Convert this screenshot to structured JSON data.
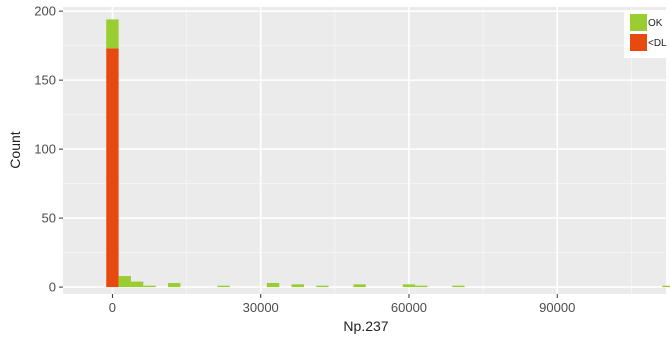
{
  "chart_data": {
    "type": "bar",
    "subtype": "stacked-histogram",
    "title": "",
    "xlabel": "Np.237",
    "ylabel": "Count",
    "xlim": [
      -10000,
      112000
    ],
    "ylim": [
      -5,
      203
    ],
    "x_ticks": [
      0,
      30000,
      60000,
      90000
    ],
    "x_tick_labels": [
      "0",
      "30000",
      "60000",
      "90000"
    ],
    "y_ticks": [
      0,
      50,
      100,
      150,
      200
    ],
    "y_tick_labels": [
      "0",
      "50",
      "100",
      "150",
      "200"
    ],
    "bin_width": 2500,
    "grid": true,
    "legend_position": "top-right",
    "colors": {
      "OK": "#9acd32",
      "<DL": "#e8490f",
      "panel": "#ebebeb",
      "grid": "#ffffff"
    },
    "series": [
      {
        "name": "OK",
        "bins": [
          {
            "x0": -1250,
            "x1": 1250,
            "value": 21
          },
          {
            "x0": 1250,
            "x1": 3750,
            "value": 8
          },
          {
            "x0": 3750,
            "x1": 6250,
            "value": 4
          },
          {
            "x0": 6250,
            "x1": 8750,
            "value": 1
          },
          {
            "x0": 11250,
            "x1": 13750,
            "value": 3
          },
          {
            "x0": 21250,
            "x1": 23750,
            "value": 1
          },
          {
            "x0": 31250,
            "x1": 33750,
            "value": 3
          },
          {
            "x0": 36250,
            "x1": 38750,
            "value": 2
          },
          {
            "x0": 41250,
            "x1": 43750,
            "value": 1
          },
          {
            "x0": 48750,
            "x1": 51250,
            "value": 2
          },
          {
            "x0": 58750,
            "x1": 61250,
            "value": 2
          },
          {
            "x0": 61250,
            "x1": 63750,
            "value": 1
          },
          {
            "x0": 68750,
            "x1": 71250,
            "value": 1
          },
          {
            "x0": 111250,
            "x1": 113750,
            "value": 1
          }
        ]
      },
      {
        "name": "<DL",
        "bins": [
          {
            "x0": -1250,
            "x1": 1250,
            "value": 173
          }
        ]
      }
    ],
    "legend_labels": [
      "OK",
      "<DL"
    ]
  }
}
